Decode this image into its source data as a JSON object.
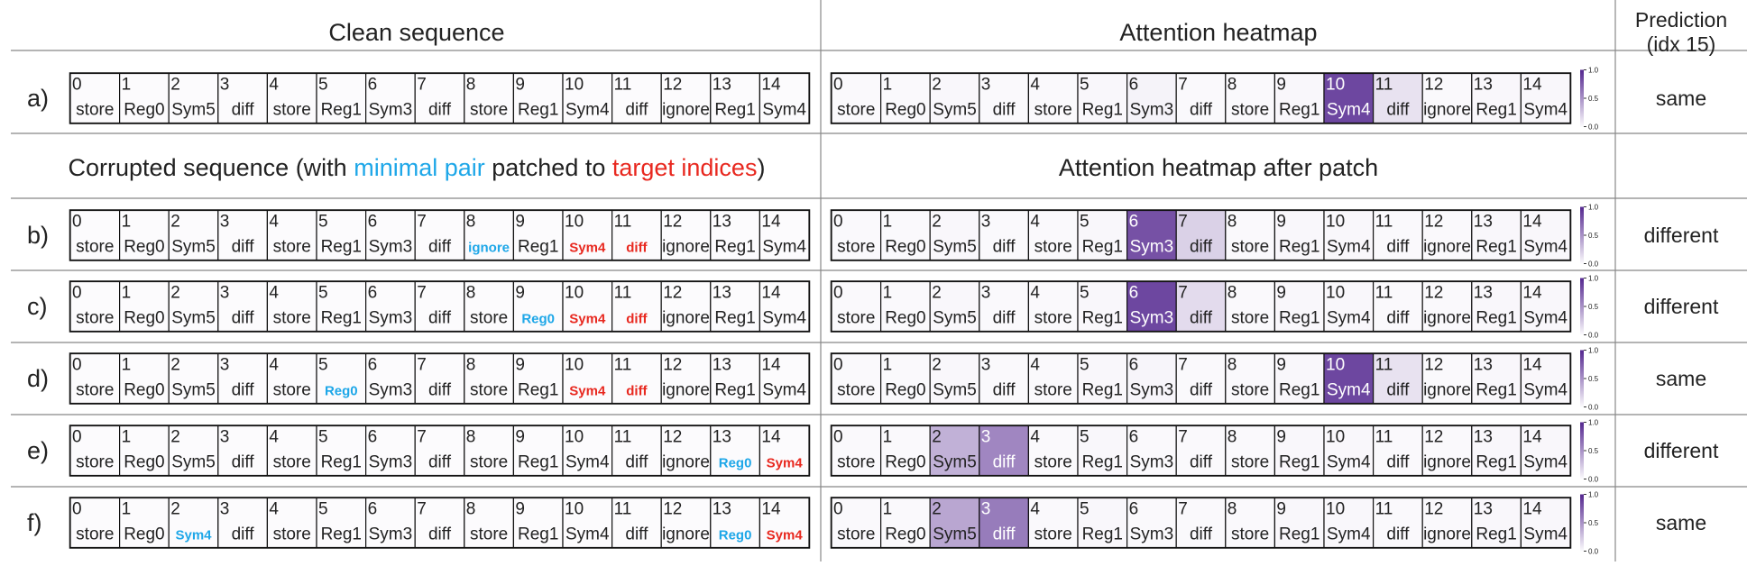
{
  "headers": {
    "clean": "Clean sequence",
    "heatmap": "Attention heatmap",
    "prediction": [
      "Prediction",
      "(idx 15)"
    ],
    "corrupted": [
      "Corrupted sequence (with ",
      "minimal pair",
      " patched to ",
      "target indices",
      ")"
    ],
    "heatmap_patch": "Attention heatmap after patch"
  },
  "indices": [
    0,
    1,
    2,
    3,
    4,
    5,
    6,
    7,
    8,
    9,
    10,
    11,
    12,
    13,
    14
  ],
  "clean_tokens": [
    "store",
    "Reg0",
    "Sym5",
    "diff",
    "store",
    "Reg1",
    "Sym3",
    "diff",
    "store",
    "Reg1",
    "Sym4",
    "diff",
    "ignore",
    "Reg1",
    "Sym4"
  ],
  "colorbar": {
    "low": "#fcfbfd",
    "high": "#54278f",
    "ticks": [
      {
        "value": 1,
        "label": "1.0"
      },
      {
        "value": 0.5,
        "label": "0.5"
      },
      {
        "value": 0,
        "label": "0.0"
      }
    ]
  },
  "rows": [
    {
      "label": "a)",
      "tokens": [
        "store",
        "Reg0",
        "Sym5",
        "diff",
        "store",
        "Reg1",
        "Sym3",
        "diff",
        "store",
        "Reg1",
        "Sym4",
        "diff",
        "ignore",
        "Reg1",
        "Sym4"
      ],
      "minimal_pair": [],
      "target": [],
      "attention": [
        0.01,
        0.01,
        0.02,
        0.01,
        0.01,
        0.02,
        0.04,
        0.01,
        0.01,
        0.02,
        0.85,
        0.12,
        0.01,
        0.02,
        0.02
      ],
      "prediction": "same"
    },
    {
      "label": "b)",
      "tokens": [
        "store",
        "Reg0",
        "Sym5",
        "diff",
        "store",
        "Reg1",
        "Sym3",
        "diff",
        "ignore",
        "Reg1",
        "Sym4",
        "diff",
        "ignore",
        "Reg1",
        "Sym4"
      ],
      "minimal_pair": [
        8
      ],
      "target": [
        10,
        11
      ],
      "attention": [
        0.01,
        0.01,
        0.02,
        0.01,
        0.01,
        0.02,
        0.8,
        0.2,
        0.01,
        0.02,
        0.02,
        0.01,
        0.01,
        0.02,
        0.02
      ],
      "prediction": "different"
    },
    {
      "label": "c)",
      "tokens": [
        "store",
        "Reg0",
        "Sym5",
        "diff",
        "store",
        "Reg1",
        "Sym3",
        "diff",
        "store",
        "Reg0",
        "Sym4",
        "diff",
        "ignore",
        "Reg1",
        "Sym4"
      ],
      "minimal_pair": [
        9
      ],
      "target": [
        10,
        11
      ],
      "attention": [
        0.01,
        0.01,
        0.02,
        0.01,
        0.01,
        0.02,
        0.85,
        0.15,
        0.01,
        0.02,
        0.02,
        0.01,
        0.01,
        0.02,
        0.02
      ],
      "prediction": "different"
    },
    {
      "label": "d)",
      "tokens": [
        "store",
        "Reg0",
        "Sym5",
        "diff",
        "store",
        "Reg0",
        "Sym3",
        "diff",
        "store",
        "Reg1",
        "Sym4",
        "diff",
        "ignore",
        "Reg1",
        "Sym4"
      ],
      "minimal_pair": [
        5
      ],
      "target": [
        10,
        11
      ],
      "attention": [
        0.01,
        0.01,
        0.02,
        0.01,
        0.01,
        0.02,
        0.03,
        0.01,
        0.01,
        0.02,
        0.85,
        0.12,
        0.01,
        0.02,
        0.02
      ],
      "prediction": "same"
    },
    {
      "label": "e)",
      "tokens": [
        "store",
        "Reg0",
        "Sym5",
        "diff",
        "store",
        "Reg1",
        "Sym3",
        "diff",
        "store",
        "Reg1",
        "Sym4",
        "diff",
        "ignore",
        "Reg0",
        "Sym4"
      ],
      "minimal_pair": [
        13
      ],
      "target": [
        14
      ],
      "attention": [
        0.01,
        0.01,
        0.35,
        0.55,
        0.01,
        0.02,
        0.01,
        0.01,
        0.01,
        0.02,
        0.02,
        0.01,
        0.01,
        0.02,
        0.02
      ],
      "prediction": "different"
    },
    {
      "label": "f)",
      "tokens": [
        "store",
        "Reg0",
        "Sym4",
        "diff",
        "store",
        "Reg1",
        "Sym3",
        "diff",
        "store",
        "Reg1",
        "Sym4",
        "diff",
        "ignore",
        "Reg0",
        "Sym4"
      ],
      "minimal_pair": [
        2,
        13
      ],
      "target": [
        14
      ],
      "attention": [
        0.01,
        0.01,
        0.4,
        0.6,
        0.01,
        0.02,
        0.01,
        0.01,
        0.01,
        0.02,
        0.02,
        0.01,
        0.01,
        0.02,
        0.02
      ],
      "prediction": "same"
    }
  ]
}
